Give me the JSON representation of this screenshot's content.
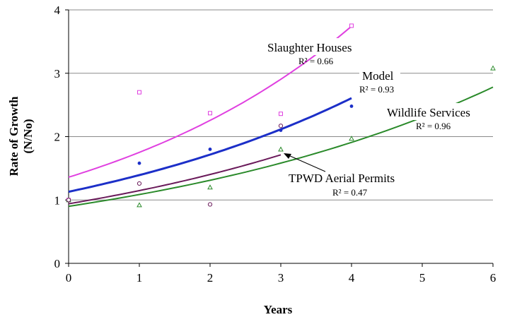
{
  "chart_data": {
    "type": "scatter",
    "title": "",
    "xlabel": "Years",
    "ylabel": "Rate of Growth",
    "ylabel_sub": "(N/No)",
    "xlim": [
      0,
      6
    ],
    "ylim": [
      0,
      4
    ],
    "x_ticks": [
      "0",
      "1",
      "2",
      "3",
      "4",
      "5",
      "6"
    ],
    "y_ticks": [
      "0",
      "1",
      "2",
      "3",
      "4"
    ],
    "grid": "horizontal",
    "legend": "none",
    "series": [
      {
        "name": "Slaughter Houses",
        "r2_label": "R² = 0.66",
        "color": "#e040e0",
        "marker": "square",
        "points": [
          [
            0,
            1.0
          ],
          [
            1,
            2.7
          ],
          [
            2,
            2.37
          ],
          [
            3,
            2.36
          ],
          [
            4,
            3.75
          ]
        ],
        "trend": {
          "type": "exponential",
          "a": 1.36,
          "b": 0.253,
          "x_from": 0,
          "x_to": 4
        }
      },
      {
        "name": "Model",
        "r2_label": "R² = 0.93",
        "color": "#1c2fc8",
        "marker": "dot",
        "points": [
          [
            0,
            1.0
          ],
          [
            1,
            1.58
          ],
          [
            2,
            1.8
          ],
          [
            3,
            2.1
          ],
          [
            4,
            2.48
          ]
        ],
        "trend": {
          "type": "exponential",
          "a": 1.13,
          "b": 0.209,
          "x_from": 0,
          "x_to": 4
        }
      },
      {
        "name": "Wildlife Services",
        "r2_label": "R² = 0.96",
        "color": "#2a8a2a",
        "marker": "triangle",
        "points": [
          [
            0,
            1.0
          ],
          [
            1,
            0.92
          ],
          [
            2,
            1.2
          ],
          [
            3,
            1.8
          ],
          [
            4,
            1.97
          ],
          [
            6,
            3.08
          ]
        ],
        "trend": {
          "type": "exponential",
          "a": 0.9,
          "b": 0.188,
          "x_from": 0,
          "x_to": 6
        }
      },
      {
        "name": "TPWD Aerial Permits",
        "r2_label": "R² = 0.47",
        "color": "#6a1a5a",
        "marker": "circle",
        "points": [
          [
            0,
            1.0
          ],
          [
            1,
            1.26
          ],
          [
            2,
            0.93
          ],
          [
            3,
            2.17
          ]
        ],
        "trend": {
          "type": "exponential",
          "a": 0.94,
          "b": 0.2,
          "x_from": 0,
          "x_to": 3
        }
      }
    ]
  }
}
